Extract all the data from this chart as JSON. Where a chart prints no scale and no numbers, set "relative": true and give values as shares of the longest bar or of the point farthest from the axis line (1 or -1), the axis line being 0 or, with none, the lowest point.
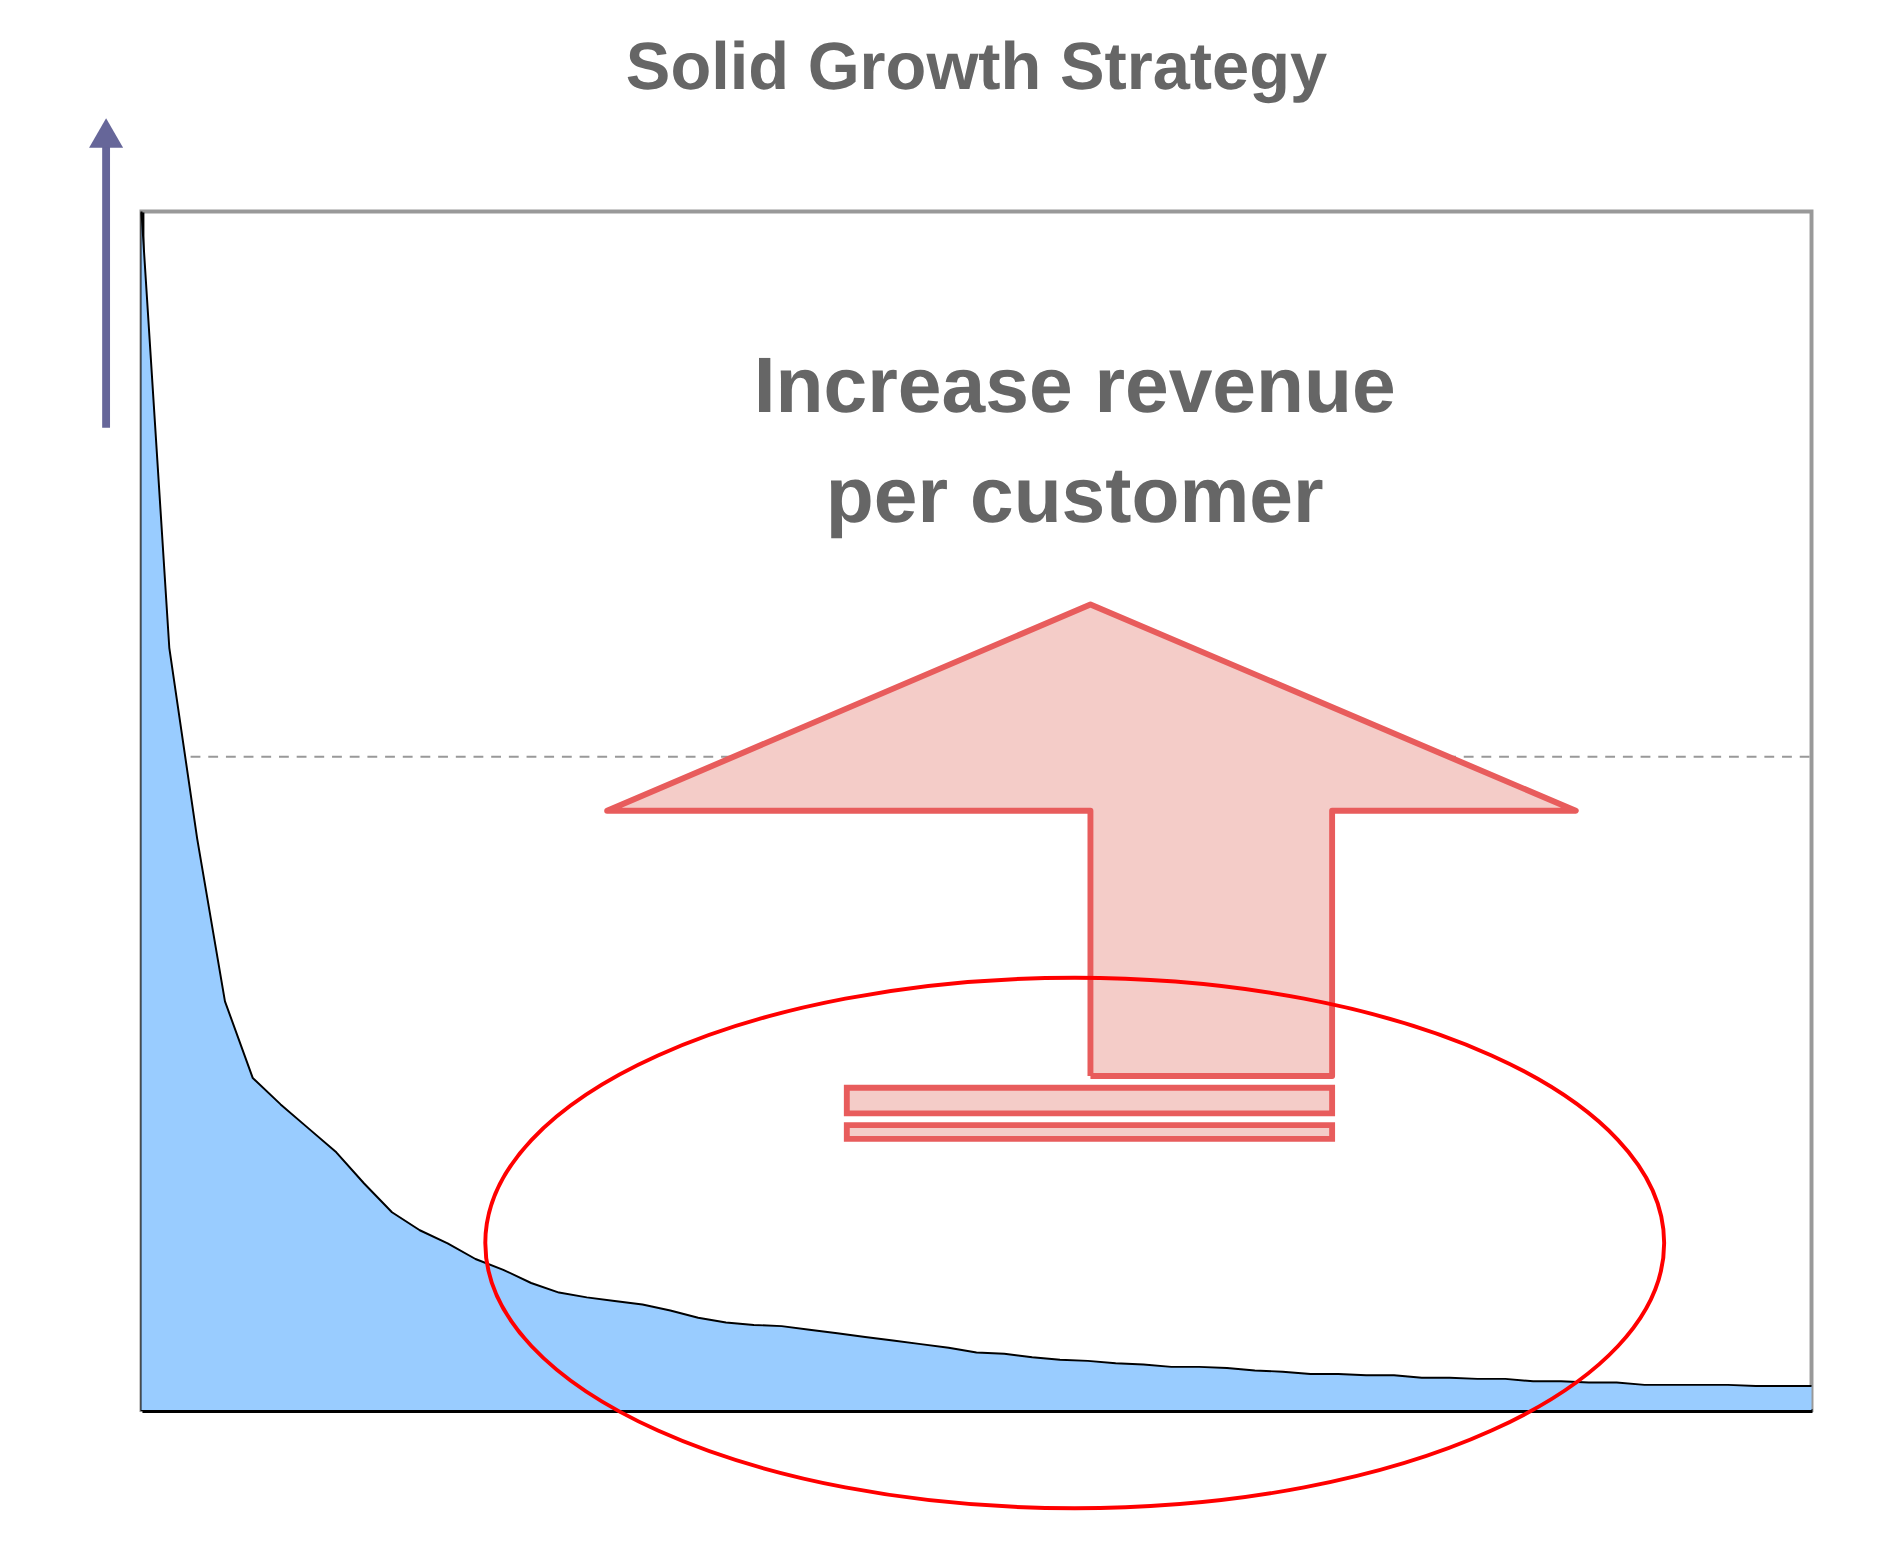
{
  "chart_data": {
    "type": "area",
    "title": "Solid Growth Strategy",
    "relative": true,
    "tick_labels": false,
    "grid": false,
    "categories": [
      null,
      null,
      null,
      null,
      null,
      null,
      null,
      null,
      null,
      null,
      null,
      null,
      null,
      null,
      null,
      null,
      null,
      null,
      null,
      null,
      null,
      null,
      null,
      null,
      null,
      null,
      null,
      null,
      null,
      null,
      null,
      null,
      null,
      null,
      null,
      null,
      null,
      null,
      null,
      null,
      null,
      null,
      null,
      null,
      null,
      null,
      null,
      null,
      null,
      null,
      null,
      null,
      null,
      null,
      null,
      null,
      null,
      null,
      null,
      null,
      null
    ],
    "series": [
      {
        "color": "#99ccff",
        "values": [
          1.0,
          0.636,
          0.477,
          0.341,
          0.277,
          0.255,
          0.235,
          0.215,
          0.189,
          0.165,
          0.15,
          0.139,
          0.126,
          0.117,
          0.106,
          0.098,
          0.094,
          0.091,
          0.088,
          0.083,
          0.077,
          0.073,
          0.071,
          0.07,
          0.067,
          0.064,
          0.061,
          0.058,
          0.055,
          0.052,
          0.048,
          0.047,
          0.044,
          0.042,
          0.041,
          0.039,
          0.038,
          0.036,
          0.036,
          0.035,
          0.033,
          0.032,
          0.03,
          0.03,
          0.029,
          0.029,
          0.027,
          0.027,
          0.026,
          0.026,
          0.024,
          0.024,
          0.023,
          0.023,
          0.021,
          0.021,
          0.021,
          0.021,
          0.02,
          0.02,
          0.02
        ]
      }
    ],
    "ref_lines": [
      {
        "axis": "y",
        "value": 0.545,
        "color": "#999999",
        "line_style": "dashed"
      }
    ],
    "annotations": [
      "Increase revenue\nper customer"
    ]
  }
}
